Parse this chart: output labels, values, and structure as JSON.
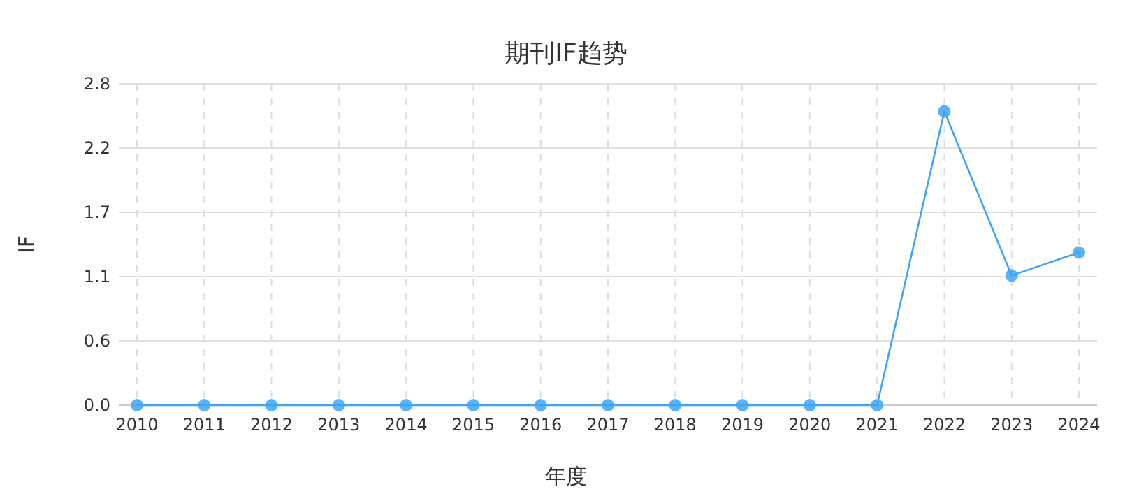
{
  "chart_data": {
    "type": "line",
    "title": "期刊IF趋势",
    "xlabel": "年度",
    "ylabel": "IF",
    "categories": [
      "2010",
      "2011",
      "2012",
      "2013",
      "2014",
      "2015",
      "2016",
      "2017",
      "2018",
      "2019",
      "2020",
      "2021",
      "2022",
      "2023",
      "2024"
    ],
    "series": [
      {
        "color": "#3fa4f5",
        "values": [
          0,
          0,
          0,
          0,
          0,
          0,
          0,
          0,
          0,
          0,
          0,
          0,
          2.56,
          1.13,
          1.33
        ]
      }
    ],
    "ylim": [
      0,
      2.8
    ],
    "yticks": [
      {
        "value": 0,
        "label": "0.0"
      },
      {
        "value": 0.56,
        "label": "0.6"
      },
      {
        "value": 1.12,
        "label": "1.1"
      },
      {
        "value": 1.68,
        "label": "1.7"
      },
      {
        "value": 2.24,
        "label": "2.2"
      },
      {
        "value": 2.8,
        "label": "2.8"
      }
    ],
    "grid": true,
    "marker": "circle",
    "line_style": "solid"
  }
}
